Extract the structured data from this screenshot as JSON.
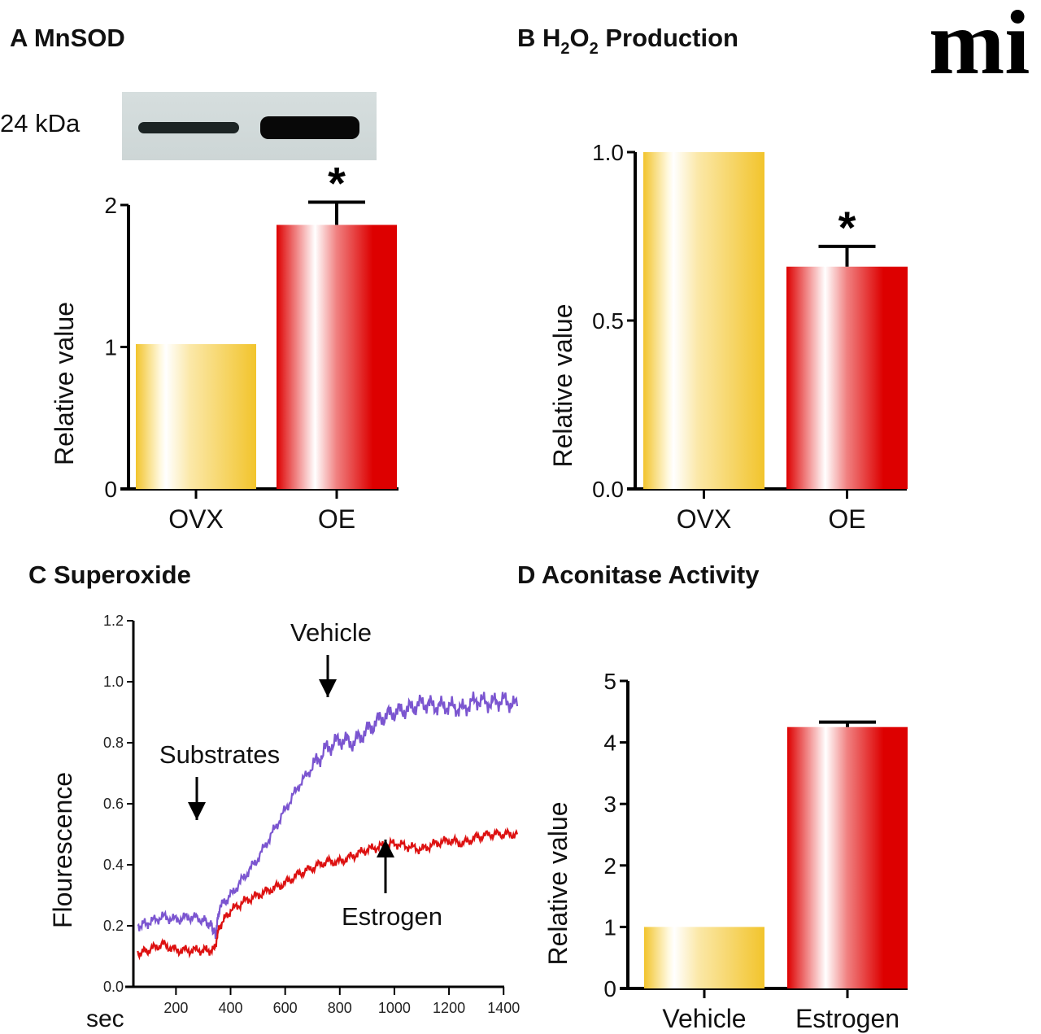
{
  "logo": {
    "text": "mi"
  },
  "colors": {
    "ovx": "#f2c42c",
    "oe": "#dd0000",
    "vehicle_line": "#7b55d0",
    "estrogen_line": "#dd1111",
    "axis": "#000000"
  },
  "blot": {
    "label": "24 kDa"
  },
  "chart_data": [
    {
      "id": "A",
      "type": "bar",
      "title": "A MnSOD",
      "ylabel": "Relative value",
      "xlabel": "",
      "categories": [
        "OVX",
        "OE"
      ],
      "values": [
        1.02,
        1.86
      ],
      "errors": [
        0,
        0.16
      ],
      "significance": [
        "",
        "*"
      ],
      "ylim": [
        0,
        2
      ],
      "yticks": [
        "0",
        "1",
        "2"
      ],
      "ytick_values": [
        0,
        1,
        2
      ]
    },
    {
      "id": "B",
      "type": "bar",
      "title_parts": [
        "B H",
        "2",
        "O",
        "2",
        " Production"
      ],
      "title": "B H2O2 Production",
      "ylabel": "Relative value",
      "xlabel": "",
      "categories": [
        "OVX",
        "OE"
      ],
      "values": [
        1.0,
        0.66
      ],
      "errors": [
        0,
        0.06
      ],
      "significance": [
        "",
        "*"
      ],
      "ylim": [
        0,
        1.0
      ],
      "yticks": [
        "0.0",
        "0.5",
        "1.0"
      ],
      "ytick_values": [
        0,
        0.5,
        1.0
      ]
    },
    {
      "id": "C",
      "type": "line",
      "title": "C Superoxide",
      "ylabel": "Flourescence",
      "xlabel": "sec",
      "ylim": [
        0,
        1.2
      ],
      "xlim": [
        50,
        1450
      ],
      "yticks": [
        "0.0",
        "0.2",
        "0.4",
        "0.6",
        "0.8",
        "1.0",
        "1.2"
      ],
      "ytick_values": [
        0,
        0.2,
        0.4,
        0.6,
        0.8,
        1.0,
        1.2
      ],
      "xticks": [
        "200",
        "400",
        "600",
        "800",
        "1000",
        "1200",
        "1400"
      ],
      "xtick_values": [
        200,
        400,
        600,
        800,
        1000,
        1200,
        1400
      ],
      "series": [
        {
          "name": "Vehicle",
          "x": [
            60,
            100,
            150,
            200,
            250,
            300,
            330,
            345,
            360,
            400,
            450,
            500,
            550,
            600,
            650,
            700,
            750,
            800,
            850,
            900,
            950,
            1000,
            1050,
            1100,
            1150,
            1200,
            1250,
            1300,
            1350,
            1400,
            1450
          ],
          "y": [
            0.2,
            0.21,
            0.23,
            0.22,
            0.23,
            0.22,
            0.2,
            0.17,
            0.26,
            0.3,
            0.36,
            0.42,
            0.5,
            0.58,
            0.66,
            0.72,
            0.78,
            0.81,
            0.8,
            0.84,
            0.88,
            0.9,
            0.91,
            0.93,
            0.92,
            0.92,
            0.91,
            0.94,
            0.93,
            0.94,
            0.92
          ]
        },
        {
          "name": "Estrogen",
          "x": [
            60,
            100,
            150,
            200,
            250,
            300,
            340,
            360,
            400,
            450,
            500,
            550,
            600,
            650,
            700,
            750,
            800,
            850,
            900,
            950,
            1000,
            1050,
            1100,
            1150,
            1200,
            1250,
            1300,
            1350,
            1400,
            1450
          ],
          "y": [
            0.11,
            0.12,
            0.14,
            0.12,
            0.12,
            0.12,
            0.12,
            0.2,
            0.25,
            0.28,
            0.3,
            0.32,
            0.34,
            0.37,
            0.39,
            0.41,
            0.41,
            0.43,
            0.45,
            0.46,
            0.47,
            0.46,
            0.45,
            0.47,
            0.48,
            0.47,
            0.49,
            0.5,
            0.5,
            0.5
          ]
        }
      ],
      "annotations": [
        {
          "text": "Vehicle",
          "x": 780,
          "y": 1.0,
          "arrow": "down"
        },
        {
          "text": "Substrates",
          "x": 280,
          "y": 0.58,
          "arrow": "down"
        },
        {
          "text": "Estrogen",
          "x": 1000,
          "y": 0.47,
          "arrow": "up"
        }
      ]
    },
    {
      "id": "D",
      "type": "bar",
      "title": "D Aconitase Activity",
      "ylabel": "Relative value",
      "xlabel": "",
      "categories": [
        "Vehicle",
        "Estrogen"
      ],
      "values": [
        1.0,
        4.25
      ],
      "errors": [
        0,
        0.08
      ],
      "significance": [
        "",
        ""
      ],
      "ylim": [
        0,
        5
      ],
      "yticks": [
        "0",
        "1",
        "2",
        "3",
        "4",
        "5"
      ],
      "ytick_values": [
        0,
        1,
        2,
        3,
        4,
        5
      ]
    }
  ]
}
